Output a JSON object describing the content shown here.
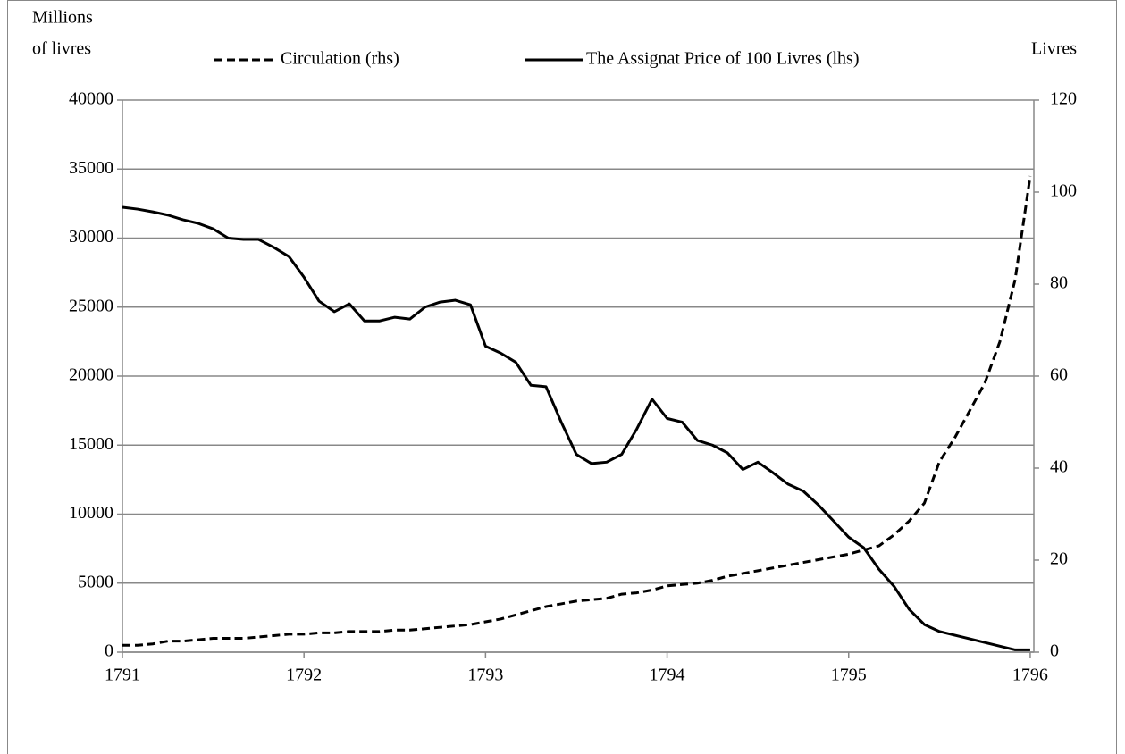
{
  "chart_data": {
    "type": "line",
    "ylabel": [
      "Millions",
      "of livres"
    ],
    "y2label": "Livres",
    "x": [
      1791,
      1791.083,
      1791.167,
      1791.25,
      1791.333,
      1791.417,
      1791.5,
      1791.583,
      1791.667,
      1791.75,
      1791.833,
      1791.917,
      1792,
      1792.083,
      1792.167,
      1792.25,
      1792.333,
      1792.417,
      1792.5,
      1792.583,
      1792.667,
      1792.75,
      1792.833,
      1792.917,
      1793,
      1793.083,
      1793.167,
      1793.25,
      1793.333,
      1793.417,
      1793.5,
      1793.583,
      1793.667,
      1793.75,
      1793.833,
      1793.917,
      1794,
      1794.083,
      1794.167,
      1794.25,
      1794.333,
      1794.417,
      1794.5,
      1794.583,
      1794.667,
      1794.75,
      1794.833,
      1794.917,
      1795,
      1795.083,
      1795.167,
      1795.25,
      1795.333,
      1795.417,
      1795.5,
      1795.583,
      1795.667,
      1795.75,
      1795.833,
      1795.917,
      1796
    ],
    "series": [
      {
        "name": "Circulation (rhs)",
        "color": "#000000",
        "dash": true,
        "values": [
          500,
          500,
          600,
          800,
          800,
          900,
          1000,
          1000,
          1000,
          1100,
          1200,
          1300,
          1300,
          1400,
          1400,
          1500,
          1500,
          1500,
          1600,
          1600,
          1700,
          1800,
          1900,
          2000,
          2200,
          2400,
          2700,
          3000,
          3300,
          3500,
          3700,
          3800,
          3900,
          4200,
          4300,
          4500,
          4800,
          4900,
          5000,
          5200,
          5500,
          5700,
          5900,
          6100,
          6300,
          6500,
          6700,
          6900,
          7100,
          7400,
          7700,
          8500,
          9500,
          10800,
          13800,
          15500,
          17500,
          19500,
          22500,
          27000,
          34500
        ]
      },
      {
        "name": "The Assignat Price of 100 Livres (lhs)",
        "color": "#000000",
        "dash": false,
        "axis": "y2",
        "values": [
          96.7,
          96.3,
          95.7,
          95,
          94,
          93.2,
          92,
          90,
          89.7,
          89.7,
          88,
          86,
          81.5,
          76.3,
          74,
          75.7,
          72,
          72,
          72.8,
          72.4,
          75,
          76.1,
          76.5,
          75.5,
          66.5,
          65,
          63,
          58,
          57.7,
          50,
          43,
          41,
          41.3,
          43,
          48.5,
          55,
          50.8,
          50,
          46,
          45,
          43.3,
          39.7,
          41.3,
          39,
          36.5,
          35,
          32,
          28.5,
          25,
          22.7,
          18,
          14.3,
          9.3,
          6,
          4.5,
          3.7,
          2.9,
          2.1,
          1.3,
          0.5,
          0.5
        ]
      }
    ],
    "xlim": [
      1791,
      1796.02
    ],
    "xticks": [
      1791,
      1792,
      1793,
      1794,
      1795,
      1796
    ],
    "ylim": [
      0,
      40000
    ],
    "yticks": [
      0,
      5000,
      10000,
      15000,
      20000,
      25000,
      30000,
      35000,
      40000
    ],
    "y2lim": [
      0,
      120
    ],
    "y2ticks": [
      0,
      20,
      40,
      60,
      80,
      100,
      120
    ],
    "grid": true
  }
}
